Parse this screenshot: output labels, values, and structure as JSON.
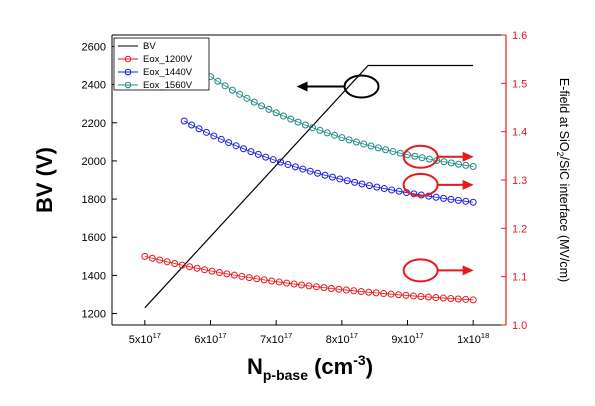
{
  "chart_data": {
    "type": "line",
    "axes": {
      "x": {
        "label_main": "N",
        "label_sub": "p-base",
        "label_unit_pre": " (cm",
        "label_unit_sup": "-3",
        "label_unit_post": ")",
        "range": [
          4.5e+17,
          1.05e+18
        ],
        "ticks": [
          5e+17,
          6e+17,
          7e+17,
          8e+17,
          9e+17,
          1e+18
        ],
        "tick_labels": [
          {
            "mant": "5x10",
            "exp": "17"
          },
          {
            "mant": "6x10",
            "exp": "17"
          },
          {
            "mant": "7x10",
            "exp": "17"
          },
          {
            "mant": "8x10",
            "exp": "17"
          },
          {
            "mant": "9x10",
            "exp": "17"
          },
          {
            "mant": "1x10",
            "exp": "18"
          }
        ]
      },
      "y_left": {
        "label": "BV (V)",
        "range": [
          1140,
          2660
        ],
        "ticks": [
          1200,
          1400,
          1600,
          1800,
          2000,
          2200,
          2400,
          2600
        ],
        "tick_labels": [
          "1200",
          "1400",
          "1600",
          "1800",
          "2000",
          "2200",
          "2400",
          "2600"
        ]
      },
      "y_right": {
        "label_pre": "E-field at SiO",
        "label_sub": "2",
        "label_post": "/SiC interface (MV/cm)",
        "range": [
          1.0,
          1.6
        ],
        "ticks": [
          1.0,
          1.1,
          1.2,
          1.3,
          1.4,
          1.5,
          1.6
        ],
        "tick_labels": [
          "1.0",
          "1.1",
          "1.2",
          "1.3",
          "1.4",
          "1.5",
          "1.6"
        ]
      }
    },
    "legend": {
      "placement": "top-left",
      "entries": [
        {
          "name": "BV",
          "color": "#000000",
          "marker": "none"
        },
        {
          "name": "Eox_1200V",
          "color": "#e8191b",
          "marker": "circle"
        },
        {
          "name": "Eox_1440V",
          "color": "#1a1ee0",
          "marker": "circle"
        },
        {
          "name": "Eox_1560V",
          "color": "#1e8a86",
          "marker": "circle"
        }
      ]
    },
    "series": [
      {
        "name": "BV",
        "axis": "left",
        "color": "#000000",
        "x": [
          5e+17,
          8.4e+17,
          1e+18
        ],
        "y": [
          1230,
          2500,
          2500
        ]
      },
      {
        "name": "Eox_1200V",
        "axis": "right",
        "color": "#e8191b",
        "x_start": 5e+17,
        "x_end": 1e+18,
        "y_start": 1.142,
        "y_end": 1.052,
        "points": 45
      },
      {
        "name": "Eox_1440V",
        "axis": "right",
        "color": "#1a1ee0",
        "x_start": 5.6e+17,
        "x_end": 1e+18,
        "y_start": 1.422,
        "y_end": 1.254,
        "points": 40
      },
      {
        "name": "Eox_1560V",
        "axis": "right",
        "color": "#1e8a86",
        "x_start": 6e+17,
        "x_end": 1e+18,
        "y_start": 1.514,
        "y_end": 1.328,
        "points": 37
      }
    ],
    "annotations": [
      {
        "type": "ellipse-arrow",
        "color": "#000000",
        "at": {
          "x": 8.3e+17,
          "y": 2390,
          "axis": "left"
        },
        "direction": "left"
      },
      {
        "type": "ellipse-arrow",
        "color": "#e8191b",
        "at": {
          "x": 9.2e+17,
          "y": 1.348,
          "axis": "right"
        },
        "direction": "right"
      },
      {
        "type": "ellipse-arrow",
        "color": "#e8191b",
        "at": {
          "x": 9.2e+17,
          "y": 1.29,
          "axis": "right"
        },
        "direction": "right"
      },
      {
        "type": "ellipse-arrow",
        "color": "#e8191b",
        "at": {
          "x": 9.2e+17,
          "y": 1.113,
          "axis": "right"
        },
        "direction": "right"
      }
    ]
  }
}
